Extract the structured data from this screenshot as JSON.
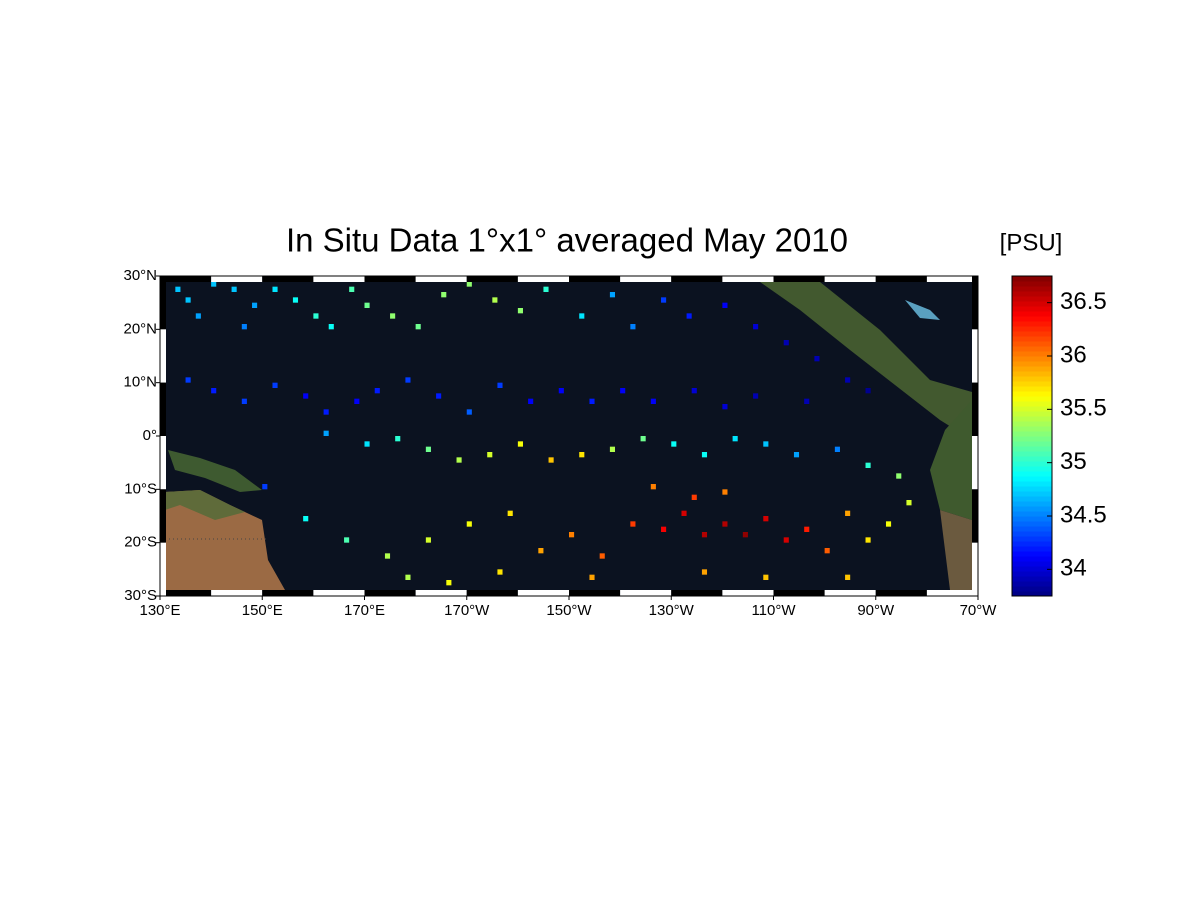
{
  "map": {
    "title": "In Situ Data 1°x1° averaged May 2010",
    "unit_label": "[PSU]",
    "lonlim": [
      130,
      290
    ],
    "latlim": [
      -30,
      30
    ],
    "lon_ticks": [
      {
        "value": 130,
        "label": "130°E"
      },
      {
        "value": 150,
        "label": "150°E"
      },
      {
        "value": 170,
        "label": "170°E"
      },
      {
        "value": 190,
        "label": "170°W"
      },
      {
        "value": 210,
        "label": "150°W"
      },
      {
        "value": 230,
        "label": "130°W"
      },
      {
        "value": 250,
        "label": "110°W"
      },
      {
        "value": 270,
        "label": "90°W"
      },
      {
        "value": 290,
        "label": "70°W"
      }
    ],
    "lat_ticks": [
      {
        "value": 30,
        "label": "30°N"
      },
      {
        "value": 20,
        "label": "20°N"
      },
      {
        "value": 10,
        "label": "10°N"
      },
      {
        "value": 0,
        "label": "0°"
      },
      {
        "value": -10,
        "label": "10°S"
      },
      {
        "value": -20,
        "label": "20°S"
      },
      {
        "value": -30,
        "label": "30°S"
      }
    ],
    "colorbar": {
      "clim": [
        33.75,
        36.75
      ],
      "ticks": [
        34,
        34.5,
        35,
        35.5,
        36,
        36.5
      ]
    },
    "cells": [
      [
        133,
        27,
        34.7
      ],
      [
        135,
        25,
        34.7
      ],
      [
        137,
        22,
        34.6
      ],
      [
        140,
        28,
        34.7
      ],
      [
        144,
        27,
        34.7
      ],
      [
        148,
        24,
        34.6
      ],
      [
        146,
        20,
        34.5
      ],
      [
        152,
        27,
        34.8
      ],
      [
        156,
        25,
        34.9
      ],
      [
        160,
        22,
        35.0
      ],
      [
        163,
        20,
        34.9
      ],
      [
        167,
        27,
        35.1
      ],
      [
        170,
        24,
        35.2
      ],
      [
        175,
        22,
        35.3
      ],
      [
        180,
        20,
        35.2
      ],
      [
        185,
        26,
        35.3
      ],
      [
        190,
        28,
        35.3
      ],
      [
        195,
        25,
        35.4
      ],
      [
        200,
        23,
        35.3
      ],
      [
        205,
        27,
        35.0
      ],
      [
        212,
        22,
        34.8
      ],
      [
        218,
        26,
        34.6
      ],
      [
        222,
        20,
        34.5
      ],
      [
        228,
        25,
        34.3
      ],
      [
        233,
        22,
        34.2
      ],
      [
        240,
        24,
        34.1
      ],
      [
        246,
        20,
        34.0
      ],
      [
        252,
        17,
        33.9
      ],
      [
        258,
        14,
        33.9
      ],
      [
        264,
        10,
        33.9
      ],
      [
        268,
        8,
        33.8
      ],
      [
        135,
        10,
        34.3
      ],
      [
        140,
        8,
        34.2
      ],
      [
        146,
        6,
        34.3
      ],
      [
        152,
        9,
        34.3
      ],
      [
        158,
        7,
        34.1
      ],
      [
        162,
        4,
        34.2
      ],
      [
        168,
        6,
        34.1
      ],
      [
        172,
        8,
        34.2
      ],
      [
        178,
        10,
        34.3
      ],
      [
        184,
        7,
        34.2
      ],
      [
        190,
        4,
        34.4
      ],
      [
        196,
        9,
        34.3
      ],
      [
        202,
        6,
        34.1
      ],
      [
        208,
        8,
        34.1
      ],
      [
        214,
        6,
        34.2
      ],
      [
        220,
        8,
        34.1
      ],
      [
        226,
        6,
        34.1
      ],
      [
        234,
        8,
        34.0
      ],
      [
        240,
        5,
        34.0
      ],
      [
        246,
        7,
        33.9
      ],
      [
        256,
        6,
        33.9
      ],
      [
        162,
        0,
        34.6
      ],
      [
        170,
        -2,
        34.8
      ],
      [
        176,
        -1,
        35.0
      ],
      [
        182,
        -3,
        35.2
      ],
      [
        188,
        -5,
        35.4
      ],
      [
        194,
        -4,
        35.5
      ],
      [
        200,
        -2,
        35.6
      ],
      [
        206,
        -5,
        35.8
      ],
      [
        212,
        -4,
        35.7
      ],
      [
        218,
        -3,
        35.4
      ],
      [
        224,
        -1,
        35.2
      ],
      [
        230,
        -2,
        34.9
      ],
      [
        236,
        -4,
        34.9
      ],
      [
        242,
        -1,
        34.8
      ],
      [
        248,
        -2,
        34.7
      ],
      [
        254,
        -4,
        34.6
      ],
      [
        262,
        -3,
        34.5
      ],
      [
        268,
        -6,
        35.0
      ],
      [
        274,
        -8,
        35.3
      ],
      [
        150,
        -10,
        34.3
      ],
      [
        158,
        -16,
        34.9
      ],
      [
        166,
        -20,
        35.1
      ],
      [
        174,
        -23,
        35.4
      ],
      [
        182,
        -20,
        35.5
      ],
      [
        190,
        -17,
        35.6
      ],
      [
        198,
        -15,
        35.7
      ],
      [
        204,
        -22,
        35.9
      ],
      [
        210,
        -19,
        36.0
      ],
      [
        216,
        -23,
        36.1
      ],
      [
        222,
        -17,
        36.2
      ],
      [
        228,
        -18,
        36.4
      ],
      [
        232,
        -15,
        36.5
      ],
      [
        236,
        -19,
        36.6
      ],
      [
        240,
        -17,
        36.6
      ],
      [
        244,
        -19,
        36.7
      ],
      [
        248,
        -16,
        36.5
      ],
      [
        252,
        -20,
        36.5
      ],
      [
        256,
        -18,
        36.3
      ],
      [
        260,
        -22,
        36.1
      ],
      [
        264,
        -15,
        35.9
      ],
      [
        268,
        -20,
        35.7
      ],
      [
        272,
        -17,
        35.6
      ],
      [
        276,
        -13,
        35.5
      ],
      [
        226,
        -10,
        36.0
      ],
      [
        234,
        -12,
        36.2
      ],
      [
        240,
        -11,
        36.0
      ],
      [
        178,
        -27,
        35.4
      ],
      [
        186,
        -28,
        35.6
      ],
      [
        196,
        -26,
        35.7
      ],
      [
        214,
        -27,
        35.9
      ],
      [
        236,
        -26,
        35.9
      ],
      [
        248,
        -27,
        35.8
      ],
      [
        264,
        -27,
        35.8
      ]
    ]
  }
}
